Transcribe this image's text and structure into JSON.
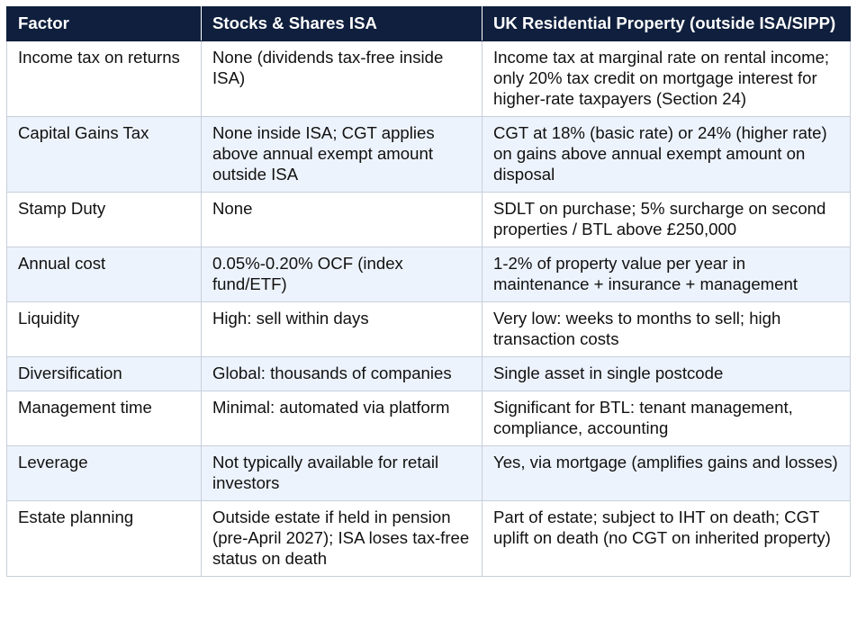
{
  "table": {
    "headers": [
      "Factor",
      "Stocks & Shares ISA",
      "UK Residential Property (outside ISA/SIPP)"
    ],
    "rows": [
      {
        "factor": "Income tax on returns",
        "isa": "None (dividends tax-free inside ISA)",
        "property": "Income tax at marginal rate on rental income; only 20% tax credit on mortgage interest for higher-rate taxpayers (Section 24)"
      },
      {
        "factor": "Capital Gains Tax",
        "isa": "None inside ISA; CGT applies above annual exempt amount outside ISA",
        "property": "CGT at 18% (basic rate) or 24% (higher rate) on gains above annual exempt amount on disposal"
      },
      {
        "factor": "Stamp Duty",
        "isa": "None",
        "property": "SDLT on purchase; 5% surcharge on second properties / BTL above £250,000"
      },
      {
        "factor": "Annual cost",
        "isa": "0.05%-0.20% OCF (index fund/ETF)",
        "property": "1-2% of property value per year in maintenance + insurance + management"
      },
      {
        "factor": "Liquidity",
        "isa": "High: sell within days",
        "property": "Very low: weeks to months to sell; high transaction costs"
      },
      {
        "factor": "Diversification",
        "isa": "Global: thousands of companies",
        "property": "Single asset in single postcode"
      },
      {
        "factor": "Management time",
        "isa": "Minimal: automated via platform",
        "property": "Significant for BTL: tenant management, compliance, accounting"
      },
      {
        "factor": "Leverage",
        "isa": "Not typically available for retail investors",
        "property": "Yes, via mortgage (amplifies gains and losses)"
      },
      {
        "factor": "Estate planning",
        "isa": "Outside estate if held in pension (pre-April 2027); ISA loses tax-free status on death",
        "property": "Part of estate; subject to IHT on death; CGT uplift on death (no CGT on inherited property)"
      }
    ]
  },
  "colors": {
    "header_bg": "#0f1f3d",
    "header_text": "#ffffff",
    "alt_row_bg": "#edf3fc",
    "border": "#c7cfdb"
  }
}
